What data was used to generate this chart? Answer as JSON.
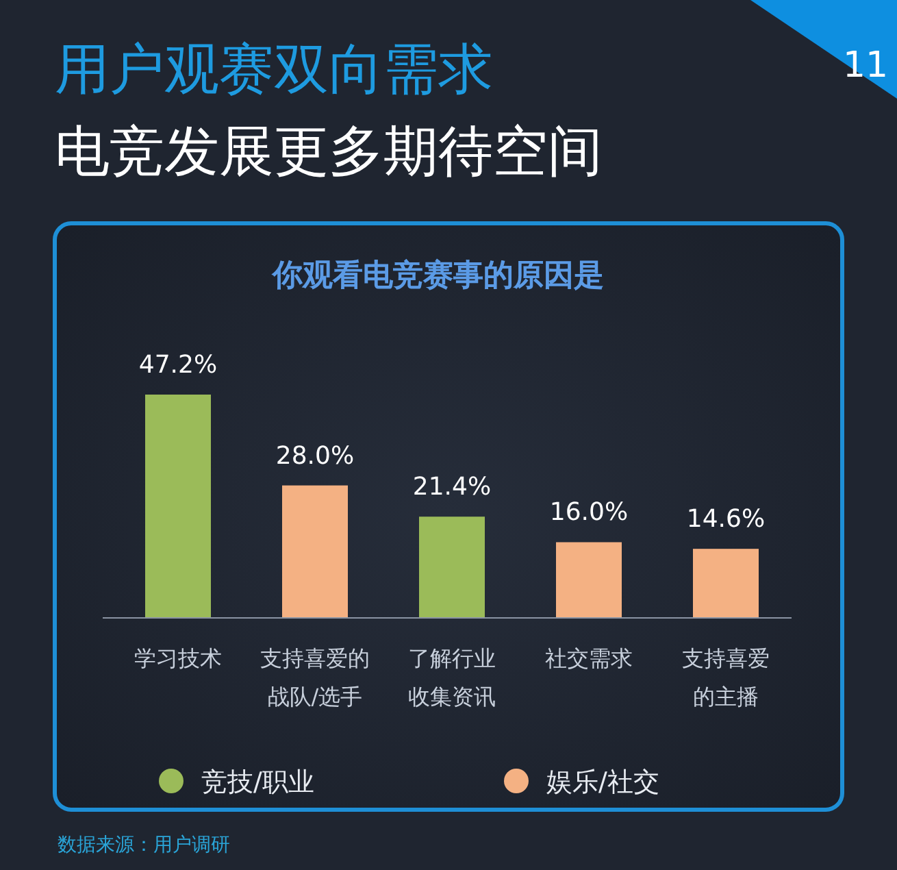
{
  "chart_data": {
    "type": "bar",
    "title": "用户观赛双向需求",
    "subtitle": "电竞发展更多期待空间",
    "annotations": [
      "你观看电竞赛事的原因是",
      "数据来源：用户调研",
      "11"
    ],
    "categories": [
      "学习技术",
      "支持喜爱的战队/选手",
      "了解行业收集资讯",
      "社交需求",
      "支持喜爱的主播"
    ],
    "legend": "bottom",
    "series": [
      {
        "name": "竞技/职业",
        "color": "#9bbb59",
        "values": [
          47.2,
          null,
          21.4,
          null,
          null
        ],
        "value_labels": [
          "47.2%",
          null,
          "21.4%",
          null,
          null
        ]
      },
      {
        "name": "娱乐/社交",
        "color": "#f4b183",
        "values": [
          null,
          28.0,
          null,
          16.0,
          14.6
        ],
        "value_labels": [
          null,
          "28.0%",
          null,
          "16.0%",
          "14.6%"
        ]
      }
    ]
  }
}
